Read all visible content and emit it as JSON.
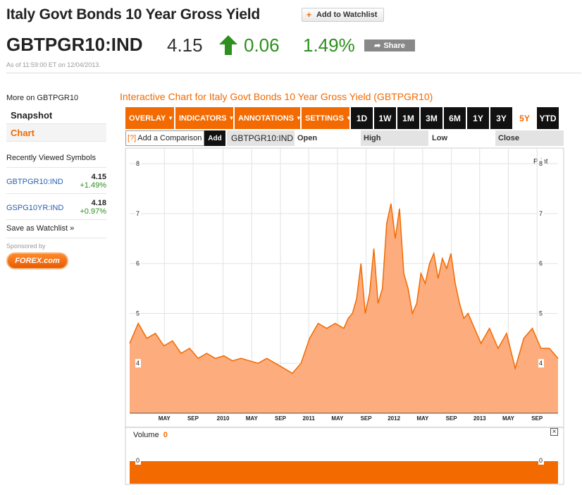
{
  "header": {
    "title": "Italy Govt Bonds 10 Year Gross Yield",
    "watchlist_label": "Add to Watchlist",
    "ticker": "GBTPGR10:IND",
    "price": "4.15",
    "change": "0.06",
    "change_pct": "1.49%",
    "share_label": "Share",
    "as_of": "As of 11:59:00 ET on 12/04/2013.",
    "up_color": "#2d8f1e",
    "accent": "#f26a00"
  },
  "sidebar": {
    "more_on": "More on GBTPGR10",
    "items": [
      {
        "label": "Snapshot"
      },
      {
        "label": "Chart"
      }
    ],
    "recent_title": "Recently Viewed Symbols",
    "recent": [
      {
        "symbol": "GBTPGR10:IND",
        "value": "4.15",
        "change": "+1.49%"
      },
      {
        "symbol": "GSPG10YR:IND",
        "value": "4.18",
        "change": "+0.97%"
      }
    ],
    "save_watchlist": "Save as Watchlist »",
    "sponsored": "Sponsored by",
    "sponsor_logo": "FOREX.com"
  },
  "chart_panel": {
    "title": "Interactive Chart for Italy Govt Bonds 10 Year Gross Yield (GBTPGR10)",
    "menus": [
      {
        "label": "OVERLAY"
      },
      {
        "label": "INDICATORS"
      },
      {
        "label": "ANNOTATIONS"
      },
      {
        "label": "SETTINGS"
      }
    ],
    "ranges": [
      "1D",
      "1W",
      "1M",
      "3M",
      "6M",
      "1Y",
      "3Y",
      "5Y",
      "YTD"
    ],
    "selected_range": "5Y",
    "compare_label": "Add a Comparison",
    "compare_icon": "[?]",
    "add_label": "Add",
    "symbol_label": "GBTPGR10:IND",
    "ohlc": [
      "Open",
      "High",
      "Low",
      "Close"
    ],
    "print_label": "Print",
    "volume_label": "Volume",
    "volume_value": "0",
    "close_icon": "×"
  },
  "chart_data": {
    "type": "area",
    "y_ticks": [
      "4",
      "5",
      "6",
      "7",
      "8"
    ],
    "ylim": [
      3.0,
      8.2
    ],
    "x_ticks": [
      "MAY",
      "SEP",
      "2010",
      "MAY",
      "SEP",
      "2011",
      "MAY",
      "SEP",
      "2012",
      "MAY",
      "SEP",
      "2013",
      "MAY",
      "SEP"
    ],
    "x_tick_pos": [
      0.081,
      0.148,
      0.218,
      0.285,
      0.352,
      0.418,
      0.485,
      0.552,
      0.617,
      0.684,
      0.751,
      0.817,
      0.884,
      0.951
    ],
    "x": [
      0.0,
      0.02,
      0.04,
      0.06,
      0.08,
      0.1,
      0.12,
      0.14,
      0.16,
      0.18,
      0.2,
      0.22,
      0.24,
      0.26,
      0.28,
      0.3,
      0.32,
      0.34,
      0.36,
      0.38,
      0.4,
      0.42,
      0.44,
      0.46,
      0.48,
      0.5,
      0.51,
      0.52,
      0.53,
      0.54,
      0.55,
      0.56,
      0.57,
      0.58,
      0.59,
      0.6,
      0.61,
      0.62,
      0.63,
      0.64,
      0.65,
      0.66,
      0.67,
      0.68,
      0.69,
      0.7,
      0.71,
      0.72,
      0.73,
      0.74,
      0.75,
      0.76,
      0.77,
      0.78,
      0.79,
      0.8,
      0.82,
      0.84,
      0.86,
      0.88,
      0.9,
      0.92,
      0.94,
      0.96,
      0.98,
      1.0
    ],
    "values": [
      4.4,
      4.8,
      4.5,
      4.6,
      4.35,
      4.45,
      4.2,
      4.3,
      4.1,
      4.2,
      4.1,
      4.15,
      4.05,
      4.1,
      4.05,
      4.0,
      4.1,
      4.0,
      3.9,
      3.8,
      4.0,
      4.5,
      4.8,
      4.7,
      4.8,
      4.7,
      4.9,
      5.0,
      5.3,
      6.0,
      5.0,
      5.4,
      6.3,
      5.2,
      5.5,
      6.8,
      7.2,
      6.5,
      7.1,
      5.8,
      5.5,
      5.0,
      5.2,
      5.8,
      5.6,
      6.0,
      6.2,
      5.7,
      6.1,
      5.9,
      6.2,
      5.6,
      5.2,
      4.9,
      5.0,
      4.8,
      4.4,
      4.7,
      4.3,
      4.6,
      3.9,
      4.5,
      4.7,
      4.3,
      4.3,
      4.1
    ],
    "volume": 0,
    "series_color": "#f26a00",
    "fill_color": "#fdac7d",
    "grid": true
  }
}
